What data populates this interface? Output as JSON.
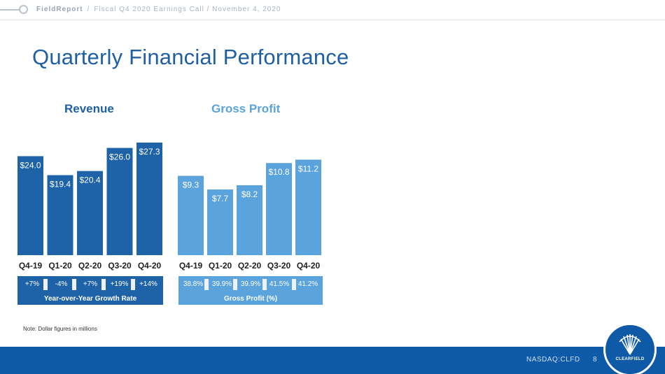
{
  "header": {
    "brand": "FieldReport",
    "separator": "/",
    "event": "Fiscal Q4 2020 Earnings Call / November 4, 2020"
  },
  "page_title": "Quarterly Financial Performance",
  "colors": {
    "revenue": "#1e63a8",
    "gross_profit": "#5aa3dc",
    "footer": "#0e5aa7",
    "title": "#1f5fa3"
  },
  "chart_data": [
    {
      "type": "bar",
      "title": "Revenue",
      "categories": [
        "Q4-19",
        "Q1-20",
        "Q2-20",
        "Q3-20",
        "Q4-20"
      ],
      "values": [
        24.0,
        19.4,
        20.4,
        26.0,
        27.3
      ],
      "value_labels": [
        "$24.0",
        "$19.4",
        "$20.4",
        "$26.0",
        "$27.3"
      ],
      "sub_values": [
        "+7%",
        "-4%",
        "+7%",
        "+19%",
        "+14%"
      ],
      "sub_caption": "Year-over-Year Growth Rate",
      "color": "#1e63a8"
    },
    {
      "type": "bar",
      "title": "Gross Profit",
      "categories": [
        "Q4-19",
        "Q1-20",
        "Q2-20",
        "Q3-20",
        "Q4-20"
      ],
      "values": [
        9.3,
        7.7,
        8.2,
        10.8,
        11.2
      ],
      "value_labels": [
        "$9.3",
        "$7.7",
        "$8.2",
        "$10.8",
        "$11.2"
      ],
      "sub_values": [
        "38.8%",
        "39.9%",
        "39.9%",
        "41.5%",
        "41.2%"
      ],
      "sub_caption": "Gross Profit (%)",
      "color": "#5aa3dc"
    }
  ],
  "note": "Note: Dollar figures in millions",
  "footer": {
    "ticker": "NASDAQ:CLFD",
    "page": "8",
    "logo_text": "CLEARFIELD"
  }
}
